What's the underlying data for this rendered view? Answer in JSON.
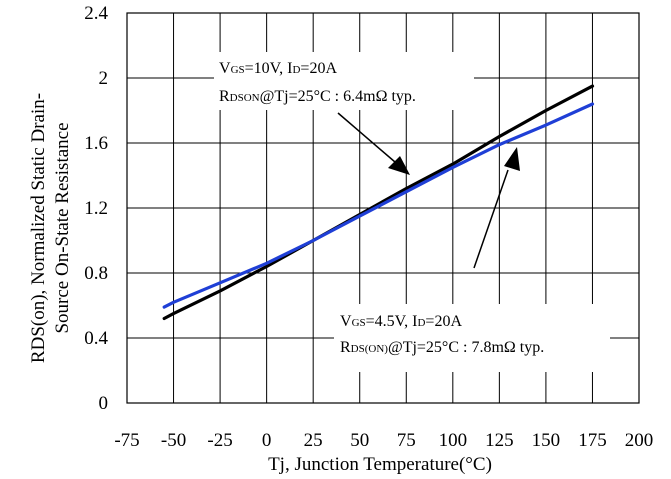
{
  "chart_data": {
    "type": "line",
    "title": "",
    "xlabel": "Tj, Junction Temperature(°C)",
    "ylabel_line1": "RDS(on), Normalized Static Drain-",
    "ylabel_line2": "Source On-State Resistance",
    "xlim": [
      -75,
      200
    ],
    "ylim": [
      0,
      2.4
    ],
    "x_ticks": [
      -75,
      -50,
      -25,
      0,
      25,
      50,
      75,
      100,
      125,
      150,
      175,
      200
    ],
    "x_tick_labels": [
      "-75",
      "-50",
      "-25",
      "0",
      "25",
      "50",
      "75",
      "100",
      "125",
      "150",
      "175",
      "200"
    ],
    "y_ticks": [
      0,
      0.4,
      0.8,
      1.2,
      1.6,
      2.0,
      2.4
    ],
    "y_tick_labels": [
      "0",
      "0.4",
      "0.8",
      "1.2",
      "1.6",
      "2",
      "2.4"
    ],
    "grid": true,
    "series": [
      {
        "color": "#000000",
        "x": [
          -55,
          -50,
          -25,
          0,
          25,
          50,
          75,
          100,
          125,
          150,
          175
        ],
        "y": [
          0.52,
          0.55,
          0.69,
          0.84,
          1.0,
          1.16,
          1.32,
          1.47,
          1.64,
          1.8,
          1.95
        ]
      },
      {
        "color": "#1f3fd6",
        "x": [
          -55,
          -50,
          -25,
          0,
          25,
          50,
          75,
          100,
          125,
          150,
          175
        ],
        "y": [
          0.59,
          0.62,
          0.74,
          0.86,
          1.0,
          1.15,
          1.3,
          1.45,
          1.59,
          1.71,
          1.84
        ]
      }
    ],
    "annotations": [
      {
        "line1": {
          "a": "V",
          "a_sub": "GS",
          "b": "=10V, I",
          "b_sub": "D",
          "c": "=20A"
        },
        "line2": {
          "a": "R",
          "a_sub": "DSON",
          "b": "@Tj=25°C : 6.4mΩ typ."
        }
      },
      {
        "line1": {
          "a": "V",
          "a_sub": "GS",
          "b": "=4.5V, I",
          "b_sub": "D",
          "c": "=20A"
        },
        "line2": {
          "a": "R",
          "a_sub": "DS(ON)",
          "b": "@Tj=25°C : 7.8mΩ typ."
        }
      }
    ]
  }
}
